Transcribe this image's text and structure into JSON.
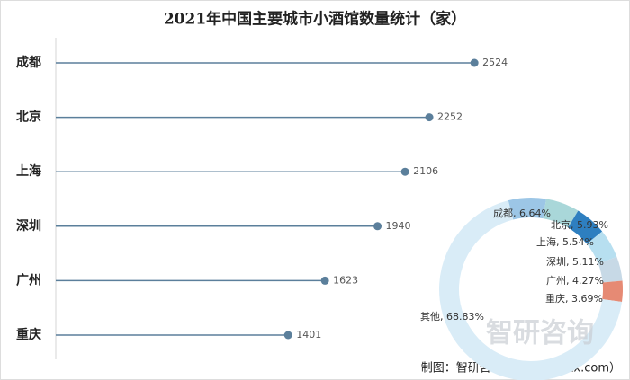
{
  "chart_data": [
    {
      "type": "lollipop",
      "title": "2021年中国主要城市小酒馆数量统计（家）",
      "categories": [
        "成都",
        "北京",
        "上海",
        "深圳",
        "广州",
        "重庆"
      ],
      "values": [
        2524,
        2252,
        2106,
        1940,
        1623,
        1401
      ],
      "color": "#5b7f9b"
    },
    {
      "type": "donut",
      "values": [
        6.64,
        5.93,
        5.54,
        5.11,
        4.27,
        3.69,
        68.83
      ],
      "value_labels": [
        "成都, 6.64%",
        "北京, 5.93%",
        "上海, 5.54%",
        "深圳, 5.11%",
        "广州, 4.27%",
        "重庆, 3.69%",
        "其他, 68.83%"
      ],
      "colors": [
        "#9cc6e6",
        "#a9d7d9",
        "#2e7fc0",
        "#b7dff0",
        "#c7d9e6",
        "#e68a74",
        "#d9ecf7"
      ]
    }
  ],
  "watermark": "智研咨询",
  "source": "制图：智研咨询（www.chyxx.com）"
}
